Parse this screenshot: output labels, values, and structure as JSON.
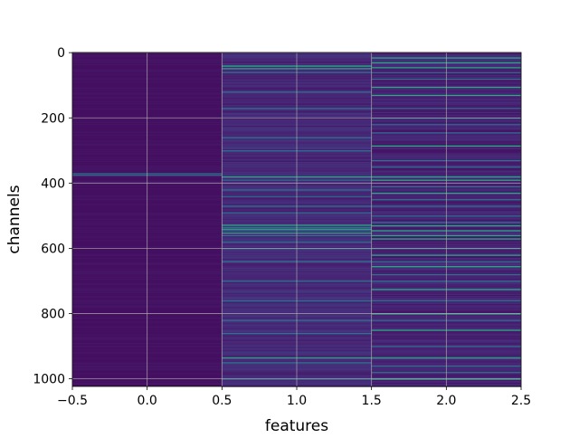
{
  "chart_data": {
    "type": "heatmap",
    "title": "",
    "xlabel": "features",
    "ylabel": "channels",
    "xlim": [
      -0.5,
      2.5
    ],
    "ylim": [
      1023.5,
      -0.5
    ],
    "x_ticks": [
      -0.5,
      0.0,
      0.5,
      1.0,
      1.5,
      2.0,
      2.5
    ],
    "x_tick_labels": [
      "−0.5",
      "0.0",
      "0.5",
      "1.0",
      "1.5",
      "2.0",
      "2.5"
    ],
    "y_ticks": [
      0,
      200,
      400,
      600,
      800,
      1000
    ],
    "y_tick_labels": [
      "0",
      "200",
      "400",
      "600",
      "800",
      "1000"
    ],
    "grid": true,
    "colormap": "viridis",
    "n_channels": 1024,
    "columns": [
      {
        "feature": 0,
        "base": 0.04,
        "bright_channels": [],
        "mid_channels": [
          370,
          375
        ]
      },
      {
        "feature": 1,
        "base": 0.1,
        "bright_channels": [
          40,
          48,
          380,
          528,
          540,
          552,
          935
        ],
        "mid_channels": [
          60,
          120,
          170,
          260,
          300,
          390,
          420,
          440,
          470,
          490,
          535,
          545,
          560,
          580,
          600,
          640,
          700,
          760,
          820,
          860,
          950,
          1000
        ]
      },
      {
        "feature": 2,
        "base": 0.08,
        "bright_channels": [
          15,
          30,
          45,
          105,
          130,
          285,
          380,
          390,
          430,
          530,
          545,
          560,
          570,
          620,
          655,
          725,
          800,
          850,
          935,
          1000
        ],
        "mid_channels": [
          60,
          80,
          170,
          200,
          220,
          245,
          330,
          350,
          410,
          450,
          470,
          500,
          520,
          600,
          640,
          680,
          700,
          760,
          820,
          900,
          960,
          980
        ]
      }
    ]
  }
}
